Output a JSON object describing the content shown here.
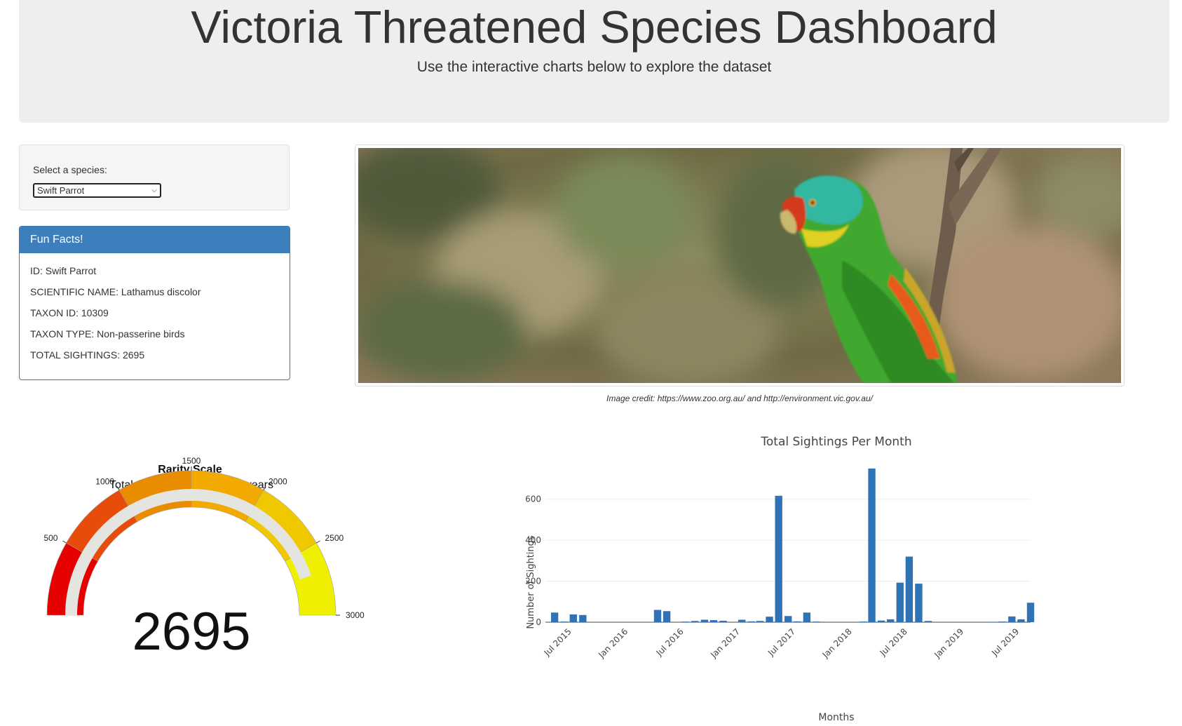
{
  "header": {
    "title": "Victoria Threatened Species Dashboard",
    "subtitle": "Use the interactive charts below to explore the dataset"
  },
  "selector": {
    "label": "Select a species:",
    "selected": "Swift Parrot"
  },
  "facts": {
    "heading": "Fun Facts!",
    "lines": [
      "ID: Swift Parrot",
      "SCIENTIFIC NAME: Lathamus discolor",
      "TAXON ID: 10309",
      "TAXON TYPE: Non-passerine birds",
      "TOTAL SIGHTINGS: 2695"
    ]
  },
  "image": {
    "subject": "swift-parrot-photo",
    "credit": "Image credit: https://www.zoo.org.au/ and http://environment.vic.gov.au/"
  },
  "colors": {
    "panel_blue": "#3d7ebc",
    "bar_blue": "#3072b6",
    "gauge_track": "#e4e4e0"
  },
  "chart_data": [
    {
      "type": "gauge",
      "title": "Rarity Scale",
      "subtitle": "Total Sightings in the last 5 years",
      "value": 2695,
      "display_value": "2695",
      "range": [
        0,
        3000
      ],
      "tick_values": [
        500,
        1000,
        1500,
        2000,
        2500,
        3000
      ],
      "tick_labels": [
        "500",
        "1000",
        "1500",
        "2000",
        "2500",
        "3000"
      ],
      "bands": [
        {
          "from": 0,
          "to": 500,
          "color": "#e60000"
        },
        {
          "from": 500,
          "to": 1000,
          "color": "#e84c0b"
        },
        {
          "from": 1000,
          "to": 1500,
          "color": "#ea8c00"
        },
        {
          "from": 1500,
          "to": 2000,
          "color": "#f2a900"
        },
        {
          "from": 2000,
          "to": 2500,
          "color": "#f0c800"
        },
        {
          "from": 2500,
          "to": 3000,
          "color": "#eef000"
        }
      ]
    },
    {
      "type": "bar",
      "title": "Total Sightings Per Month",
      "xlabel": "Months",
      "ylabel": "Number of Sightings",
      "ylim": [
        0,
        760
      ],
      "y_ticks": [
        0,
        200,
        400,
        600
      ],
      "y_tick_labels": [
        "0",
        "200",
        "400",
        "600"
      ],
      "x_range": [
        "2015-04-15",
        "2019-08-15"
      ],
      "x_ticks": [
        "2015-07-01",
        "2016-01-01",
        "2016-07-01",
        "2017-01-01",
        "2017-07-01",
        "2018-01-01",
        "2018-07-01",
        "2019-01-01",
        "2019-07-01"
      ],
      "x_tick_labels": [
        "Jul 2015",
        "Jan 2016",
        "Jul 2016",
        "Jan 2017",
        "Jul 2017",
        "Jan 2018",
        "Jul 2018",
        "Jan 2019",
        "Jul 2019"
      ],
      "series": [
        {
          "x": [
            "2015-05",
            "2015-06",
            "2015-07",
            "2015-08",
            "2016-04",
            "2016-05",
            "2016-07",
            "2016-08",
            "2016-09",
            "2016-10",
            "2016-11",
            "2017-01",
            "2017-02",
            "2017-03",
            "2017-04",
            "2017-05",
            "2017-06",
            "2017-07",
            "2017-08",
            "2017-09",
            "2018-02",
            "2018-03",
            "2018-04",
            "2018-05",
            "2018-06",
            "2018-07",
            "2018-08",
            "2018-09",
            "2019-04",
            "2019-05",
            "2019-06",
            "2019-07",
            "2019-08"
          ],
          "values": [
            47,
            3,
            38,
            35,
            60,
            54,
            3,
            6,
            12,
            10,
            7,
            12,
            4,
            6,
            27,
            617,
            30,
            4,
            47,
            3,
            3,
            750,
            8,
            14,
            193,
            320,
            188,
            6,
            2,
            3,
            28,
            14,
            95
          ]
        }
      ]
    }
  ]
}
